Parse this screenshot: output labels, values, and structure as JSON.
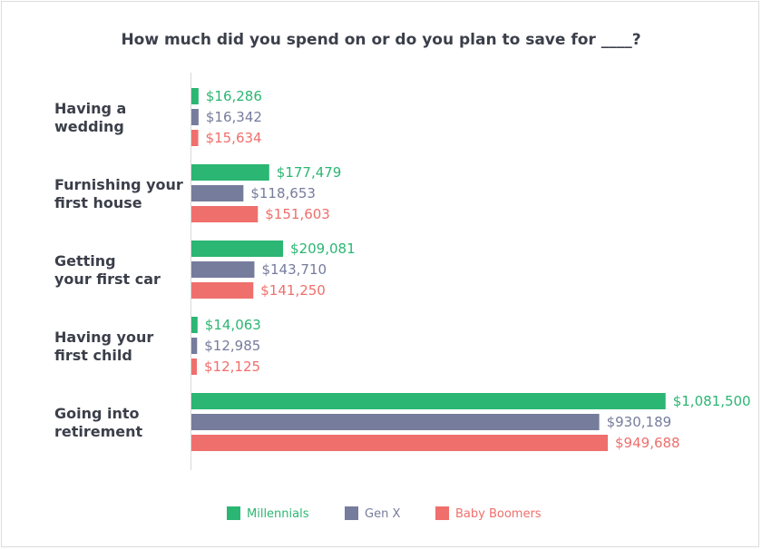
{
  "chart_data": {
    "type": "bar",
    "orientation": "horizontal",
    "title": "How much did you spend on or do you plan to save for ____?",
    "categories": [
      [
        "Having a",
        "wedding"
      ],
      [
        "Furnishing your",
        "first house"
      ],
      [
        "Getting",
        "your first car"
      ],
      [
        "Having your",
        "first child"
      ],
      [
        "Going into",
        "retirement"
      ]
    ],
    "series": [
      {
        "name": "Millennials",
        "color": "#2bb673",
        "values": [
          16286,
          177479,
          209081,
          14063,
          1081500
        ],
        "labels": [
          "$16,286",
          "$177,479",
          "$209,081",
          "$14,063",
          "$1,081,500"
        ]
      },
      {
        "name": "Gen X",
        "color": "#767c9c",
        "values": [
          16342,
          118653,
          143710,
          12985,
          930189
        ],
        "labels": [
          "$16,342",
          "$118,653",
          "$143,710",
          "$12,985",
          "$930,189"
        ]
      },
      {
        "name": "Baby Boomers",
        "color": "#ef6f6c",
        "values": [
          15634,
          151603,
          141250,
          12125,
          949688
        ],
        "labels": [
          "$15,634",
          "$151,603",
          "$141,250",
          "$12,125",
          "$949,688"
        ]
      }
    ],
    "xlim": [
      0,
      1200000
    ],
    "grid": false,
    "legend_position": "bottom-center"
  }
}
